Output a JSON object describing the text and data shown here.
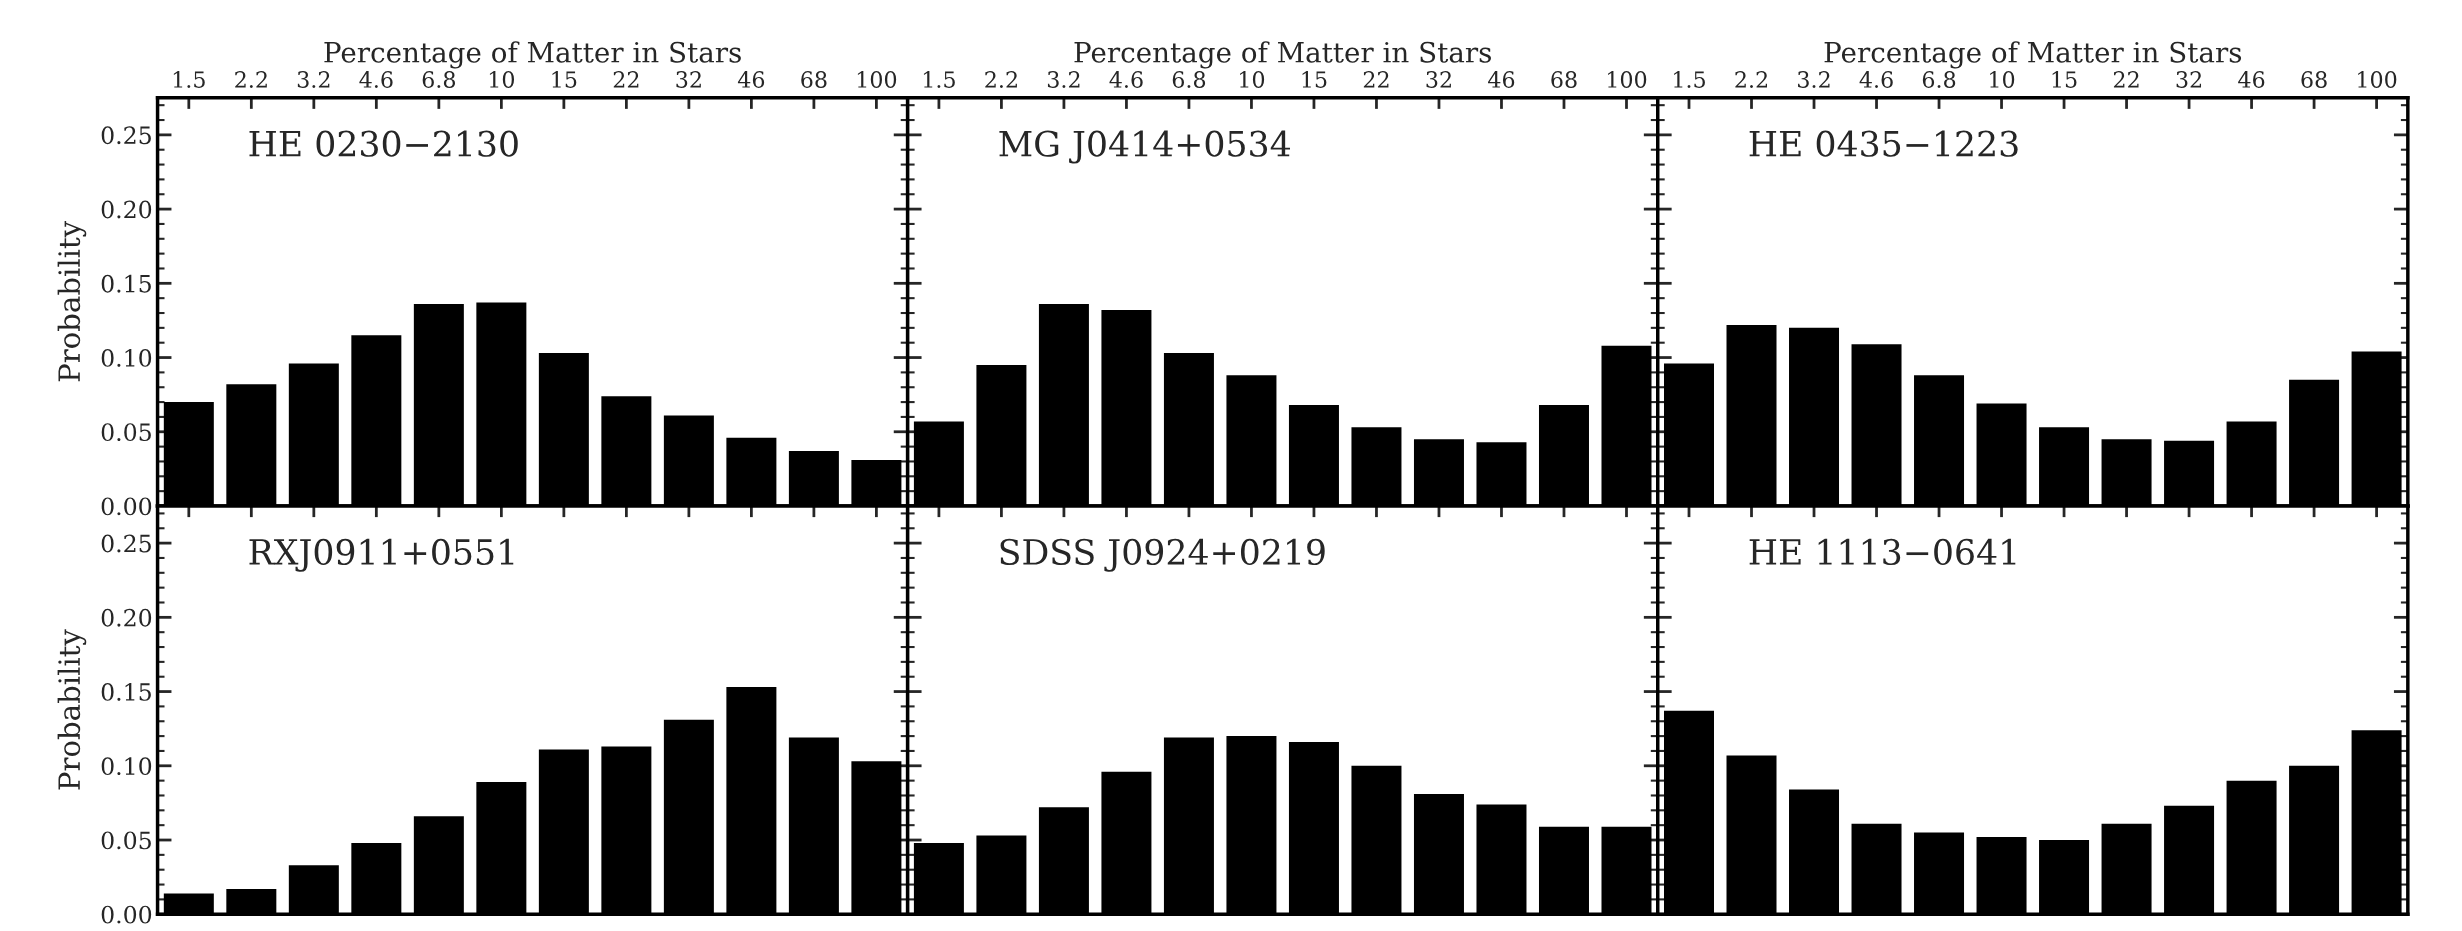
{
  "chart_data": [
    {
      "type": "bar",
      "xlabel": "Percentage of Matter in Stars",
      "ylabel": "Probability",
      "annotations": [
        "HE 0230−2130"
      ],
      "color": "#000000",
      "categories": [
        "1.5",
        "2.2",
        "3.2",
        "4.6",
        "6.8",
        "10",
        "15",
        "22",
        "32",
        "46",
        "68",
        "100"
      ],
      "values": [
        0.07,
        0.082,
        0.096,
        0.115,
        0.136,
        0.137,
        0.103,
        0.074,
        0.061,
        0.046,
        0.037,
        0.031
      ],
      "ylim": [
        0,
        0.275
      ],
      "yticks": [
        {
          "value": 0,
          "label": "0.00"
        },
        0.05,
        {
          "value": 0.1,
          "label": "0.10"
        },
        0.15,
        {
          "value": 0.2,
          "label": "0.20"
        },
        0.25
      ],
      "grid": false
    },
    {
      "type": "bar",
      "xlabel": "Percentage of Matter in Stars",
      "annotations": [
        "MG J0414+0534"
      ],
      "color": "#000000",
      "categories": [
        "1.5",
        "2.2",
        "3.2",
        "4.6",
        "6.8",
        "10",
        "15",
        "22",
        "32",
        "46",
        "68",
        "100"
      ],
      "values": [
        0.057,
        0.095,
        0.136,
        0.132,
        0.103,
        0.088,
        0.068,
        0.053,
        0.045,
        0.043,
        0.068,
        0.108
      ],
      "ylim": [
        0,
        0.275
      ],
      "yticks": [
        0.0,
        0.05,
        0.1,
        0.15,
        0.2,
        0.25
      ],
      "tick_labels": "x",
      "grid": false
    },
    {
      "type": "bar",
      "xlabel": "Percentage of Matter in Stars",
      "annotations": [
        "HE 0435−1223"
      ],
      "color": "#000000",
      "categories": [
        "1.5",
        "2.2",
        "3.2",
        "4.6",
        "6.8",
        "10",
        "15",
        "22",
        "32",
        "46",
        "68",
        "100"
      ],
      "values": [
        0.096,
        0.122,
        0.12,
        0.109,
        0.088,
        0.069,
        0.053,
        0.045,
        0.044,
        0.057,
        0.085,
        0.104
      ],
      "ylim": [
        0,
        0.275
      ],
      "yticks": [
        0.0,
        0.05,
        0.1,
        0.15,
        0.2,
        0.25
      ],
      "tick_labels": "x",
      "grid": false
    },
    {
      "type": "bar",
      "ylabel": "Probability",
      "annotations": [
        "RXJ0911+0551"
      ],
      "color": "#000000",
      "categories": [
        "1.5",
        "2.2",
        "3.2",
        "4.6",
        "6.8",
        "10",
        "15",
        "22",
        "32",
        "46",
        "68",
        "100"
      ],
      "values": [
        0.014,
        0.017,
        0.033,
        0.048,
        0.066,
        0.089,
        0.111,
        0.113,
        0.131,
        0.153,
        0.119,
        0.103
      ],
      "ylim": [
        0,
        0.275
      ],
      "yticks": [
        {
          "value": 0,
          "label": "0.00"
        },
        0.05,
        {
          "value": 0.1,
          "label": "0.10"
        },
        0.15,
        {
          "value": 0.2,
          "label": "0.20"
        },
        0.25
      ],
      "tick_labels": "y",
      "grid": false
    },
    {
      "type": "bar",
      "annotations": [
        "SDSS J0924+0219"
      ],
      "color": "#000000",
      "categories": [
        "1.5",
        "2.2",
        "3.2",
        "4.6",
        "6.8",
        "10",
        "15",
        "22",
        "32",
        "46",
        "68",
        "100"
      ],
      "values": [
        0.048,
        0.053,
        0.072,
        0.096,
        0.119,
        0.12,
        0.116,
        0.1,
        0.081,
        0.074,
        0.059,
        0.059
      ],
      "ylim": [
        0,
        0.275
      ],
      "yticks": [
        0.0,
        0.05,
        0.1,
        0.15,
        0.2,
        0.25
      ],
      "tick_labels": false,
      "grid": false
    },
    {
      "type": "bar",
      "annotations": [
        "HE 1113−0641"
      ],
      "color": "#000000",
      "categories": [
        "1.5",
        "2.2",
        "3.2",
        "4.6",
        "6.8",
        "10",
        "15",
        "22",
        "32",
        "46",
        "68",
        "100"
      ],
      "values": [
        0.137,
        0.107,
        0.084,
        0.061,
        0.055,
        0.052,
        0.05,
        0.061,
        0.073,
        0.09,
        0.1,
        0.124
      ],
      "ylim": [
        0,
        0.275
      ],
      "yticks": [
        0.0,
        0.05,
        0.1,
        0.15,
        0.2,
        0.25
      ],
      "tick_labels": false,
      "grid": false
    }
  ]
}
